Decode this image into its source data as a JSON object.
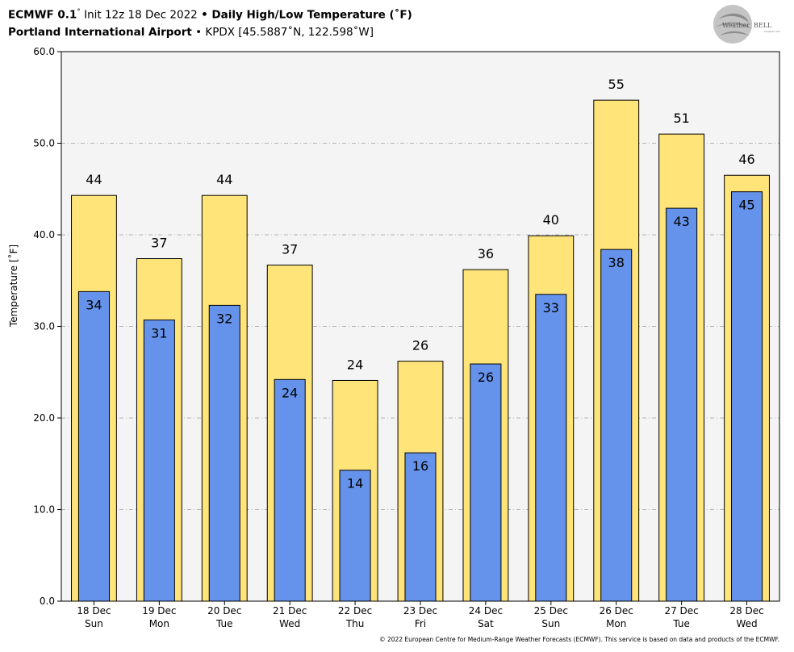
{
  "header": {
    "line1_model": "ECMWF 0.1",
    "line1_deg": "°",
    "line1_init": " Init 12z 18 Dec 2022 ",
    "line1_sep": "•",
    "line1_title": " Daily High/Low Temperature (˚F)",
    "line2_location": "Portland International Airport",
    "line2_sep": " • ",
    "line2_station": "KPDX [45.5887˚N, 122.598˚W]"
  },
  "logo": {
    "text_prefix": "Weather",
    "text_suffix": "BELL",
    "sub": "Analytics LLC"
  },
  "footer": {
    "copyright": "© 2022 European Centre for Medium-Range Weather Forecasts (ECMWF). This service is based on data and products of the ECMWF."
  },
  "chart_data": {
    "type": "bar",
    "ylabel": "Temperature [˚F]",
    "ylim": [
      0,
      60
    ],
    "yticks": [
      "0.0",
      "10.0",
      "20.0",
      "30.0",
      "40.0",
      "50.0",
      "60.0"
    ],
    "grid": true,
    "categories": [
      [
        "18 Dec",
        "Sun"
      ],
      [
        "19 Dec",
        "Mon"
      ],
      [
        "20 Dec",
        "Tue"
      ],
      [
        "21 Dec",
        "Wed"
      ],
      [
        "22 Dec",
        "Thu"
      ],
      [
        "23 Dec",
        "Fri"
      ],
      [
        "24 Dec",
        "Sat"
      ],
      [
        "25 Dec",
        "Sun"
      ],
      [
        "26 Dec",
        "Mon"
      ],
      [
        "27 Dec",
        "Tue"
      ],
      [
        "28 Dec",
        "Wed"
      ]
    ],
    "series": [
      {
        "values": [
          44.3,
          37.4,
          44.3,
          36.7,
          24.1,
          26.2,
          36.2,
          39.9,
          54.7,
          51.0,
          46.5
        ],
        "labels": [
          "44",
          "37",
          "44",
          "37",
          "24",
          "26",
          "36",
          "40",
          "55",
          "51",
          "46"
        ],
        "color": "#ffe47a"
      },
      {
        "values": [
          33.8,
          30.7,
          32.3,
          24.2,
          14.3,
          16.2,
          25.9,
          33.5,
          38.4,
          42.9,
          44.7
        ],
        "labels": [
          "34",
          "31",
          "32",
          "24",
          "14",
          "16",
          "26",
          "33",
          "38",
          "43",
          "45"
        ],
        "color": "#6592eb"
      }
    ]
  }
}
